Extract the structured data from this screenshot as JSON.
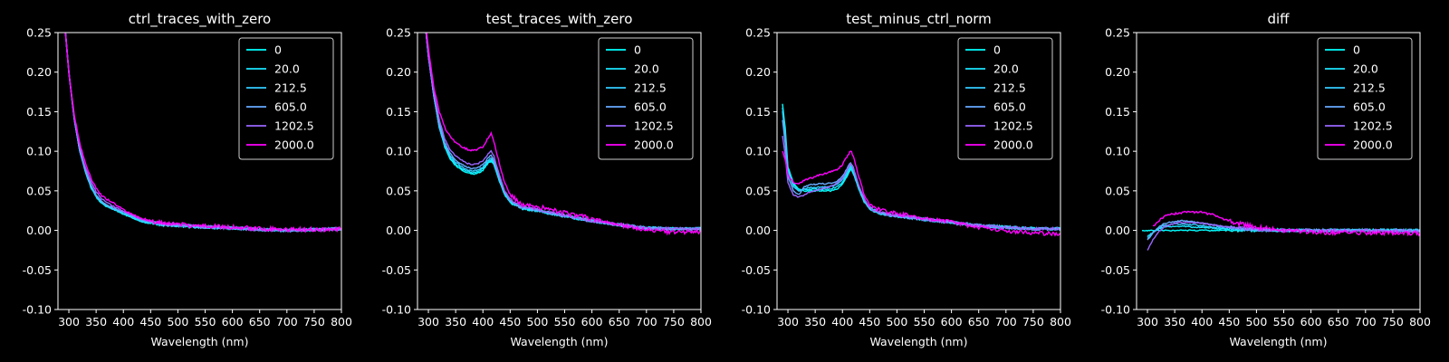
{
  "chart_data": [
    {
      "type": "line",
      "title": "ctrl_traces_with_zero",
      "xlabel": "Wavelength (nm)",
      "ylabel": "",
      "xlim": [
        280,
        800
      ],
      "ylim": [
        -0.1,
        0.25
      ],
      "xticks": [
        300,
        350,
        400,
        450,
        500,
        550,
        600,
        650,
        700,
        750,
        800
      ],
      "yticks": [
        -0.1,
        -0.05,
        0.0,
        0.05,
        0.1,
        0.15,
        0.2,
        0.25
      ],
      "x": [
        290,
        300,
        310,
        320,
        330,
        340,
        350,
        360,
        370,
        380,
        390,
        400,
        410,
        420,
        430,
        440,
        450,
        470,
        500,
        550,
        600,
        650,
        700,
        750,
        800
      ],
      "legend_position": "top-right",
      "series": [
        {
          "name": "0",
          "color": "#00ffff",
          "values": [
            0.28,
            0.2,
            0.14,
            0.1,
            0.075,
            0.055,
            0.042,
            0.034,
            0.03,
            0.027,
            0.024,
            0.02,
            0.018,
            0.015,
            0.012,
            0.01,
            0.009,
            0.007,
            0.006,
            0.004,
            0.003,
            0.001,
            0.0,
            0.001,
            0.002
          ]
        },
        {
          "name": "20.0",
          "color": "#19e5ff",
          "values": [
            0.28,
            0.2,
            0.14,
            0.1,
            0.075,
            0.056,
            0.043,
            0.035,
            0.03,
            0.027,
            0.024,
            0.021,
            0.018,
            0.015,
            0.012,
            0.01,
            0.009,
            0.007,
            0.006,
            0.004,
            0.003,
            0.001,
            0.0,
            0.001,
            0.002
          ]
        },
        {
          "name": "212.5",
          "color": "#33ccff",
          "values": [
            0.28,
            0.2,
            0.14,
            0.1,
            0.076,
            0.057,
            0.044,
            0.036,
            0.031,
            0.028,
            0.025,
            0.022,
            0.019,
            0.016,
            0.013,
            0.011,
            0.01,
            0.008,
            0.006,
            0.004,
            0.003,
            0.001,
            0.0,
            0.001,
            0.002
          ]
        },
        {
          "name": "605.0",
          "color": "#66aaff",
          "values": [
            0.28,
            0.2,
            0.14,
            0.1,
            0.077,
            0.058,
            0.045,
            0.037,
            0.032,
            0.029,
            0.026,
            0.023,
            0.02,
            0.017,
            0.014,
            0.012,
            0.011,
            0.008,
            0.006,
            0.004,
            0.003,
            0.001,
            0.0,
            0.001,
            0.002
          ]
        },
        {
          "name": "1202.5",
          "color": "#9966ff",
          "values": [
            0.28,
            0.2,
            0.14,
            0.105,
            0.08,
            0.062,
            0.049,
            0.04,
            0.035,
            0.031,
            0.028,
            0.024,
            0.021,
            0.018,
            0.015,
            0.013,
            0.011,
            0.009,
            0.007,
            0.005,
            0.003,
            0.001,
            0.0,
            0.001,
            0.002
          ]
        },
        {
          "name": "2000.0",
          "color": "#ff00ff",
          "values": [
            0.28,
            0.2,
            0.145,
            0.11,
            0.085,
            0.067,
            0.053,
            0.044,
            0.039,
            0.035,
            0.031,
            0.026,
            0.022,
            0.019,
            0.016,
            0.014,
            0.012,
            0.01,
            0.008,
            0.005,
            0.004,
            0.002,
            0.001,
            0.001,
            0.002
          ]
        }
      ]
    },
    {
      "type": "line",
      "title": "test_traces_with_zero",
      "xlabel": "Wavelength (nm)",
      "ylabel": "",
      "xlim": [
        280,
        800
      ],
      "ylim": [
        -0.1,
        0.25
      ],
      "xticks": [
        300,
        350,
        400,
        450,
        500,
        550,
        600,
        650,
        700,
        750,
        800
      ],
      "yticks": [
        -0.1,
        -0.05,
        0.0,
        0.05,
        0.1,
        0.15,
        0.2,
        0.25
      ],
      "x": [
        290,
        300,
        310,
        320,
        330,
        340,
        350,
        360,
        370,
        380,
        390,
        400,
        410,
        415,
        420,
        430,
        440,
        450,
        470,
        500,
        550,
        600,
        650,
        700,
        750,
        800
      ],
      "legend_position": "top-right",
      "series": [
        {
          "name": "0",
          "color": "#00ffff",
          "values": [
            0.29,
            0.22,
            0.17,
            0.13,
            0.105,
            0.09,
            0.082,
            0.077,
            0.073,
            0.071,
            0.072,
            0.076,
            0.085,
            0.088,
            0.083,
            0.062,
            0.045,
            0.035,
            0.028,
            0.025,
            0.018,
            0.012,
            0.007,
            0.003,
            0.002,
            0.002
          ]
        },
        {
          "name": "20.0",
          "color": "#19e5ff",
          "values": [
            0.29,
            0.22,
            0.17,
            0.13,
            0.107,
            0.092,
            0.084,
            0.079,
            0.075,
            0.073,
            0.074,
            0.078,
            0.087,
            0.09,
            0.085,
            0.064,
            0.046,
            0.036,
            0.028,
            0.025,
            0.018,
            0.012,
            0.007,
            0.003,
            0.002,
            0.002
          ]
        },
        {
          "name": "212.5",
          "color": "#33ccff",
          "values": [
            0.29,
            0.22,
            0.17,
            0.13,
            0.108,
            0.094,
            0.086,
            0.081,
            0.077,
            0.075,
            0.076,
            0.08,
            0.089,
            0.092,
            0.086,
            0.065,
            0.047,
            0.037,
            0.029,
            0.025,
            0.018,
            0.012,
            0.007,
            0.003,
            0.002,
            0.002
          ]
        },
        {
          "name": "605.0",
          "color": "#66aaff",
          "values": [
            0.29,
            0.22,
            0.17,
            0.135,
            0.111,
            0.097,
            0.089,
            0.084,
            0.08,
            0.078,
            0.079,
            0.083,
            0.092,
            0.095,
            0.089,
            0.067,
            0.048,
            0.038,
            0.029,
            0.026,
            0.019,
            0.012,
            0.007,
            0.003,
            0.002,
            0.002
          ]
        },
        {
          "name": "1202.5",
          "color": "#9966ff",
          "values": [
            0.29,
            0.22,
            0.175,
            0.14,
            0.116,
            0.102,
            0.094,
            0.089,
            0.085,
            0.083,
            0.084,
            0.088,
            0.097,
            0.1,
            0.094,
            0.07,
            0.05,
            0.04,
            0.03,
            0.026,
            0.019,
            0.012,
            0.007,
            0.003,
            0.002,
            0.002
          ]
        },
        {
          "name": "2000.0",
          "color": "#ff00ff",
          "values": [
            0.29,
            0.23,
            0.18,
            0.15,
            0.13,
            0.118,
            0.111,
            0.106,
            0.103,
            0.101,
            0.102,
            0.106,
            0.117,
            0.122,
            0.113,
            0.085,
            0.06,
            0.045,
            0.033,
            0.03,
            0.022,
            0.015,
            0.007,
            0.0,
            -0.002,
            -0.002
          ]
        }
      ]
    },
    {
      "type": "line",
      "title": "test_minus_ctrl_norm",
      "xlabel": "Wavelength (nm)",
      "ylabel": "",
      "xlim": [
        280,
        800
      ],
      "ylim": [
        -0.1,
        0.25
      ],
      "xticks": [
        300,
        350,
        400,
        450,
        500,
        550,
        600,
        650,
        700,
        750,
        800
      ],
      "yticks": [
        -0.1,
        -0.05,
        0.0,
        0.05,
        0.1,
        0.15,
        0.2,
        0.25
      ],
      "x": [
        290,
        295,
        300,
        310,
        320,
        330,
        340,
        350,
        360,
        370,
        380,
        390,
        400,
        410,
        415,
        420,
        430,
        440,
        450,
        470,
        500,
        550,
        600,
        650,
        700,
        750,
        800
      ],
      "legend_position": "top-right",
      "series": [
        {
          "name": "0",
          "color": "#00ffff",
          "values": [
            0.16,
            0.13,
            0.08,
            0.06,
            0.052,
            0.05,
            0.05,
            0.05,
            0.05,
            0.05,
            0.05,
            0.052,
            0.058,
            0.07,
            0.078,
            0.072,
            0.052,
            0.036,
            0.027,
            0.021,
            0.018,
            0.014,
            0.01,
            0.006,
            0.004,
            0.002,
            0.002
          ]
        },
        {
          "name": "20.0",
          "color": "#19e5ff",
          "values": [
            0.155,
            0.125,
            0.078,
            0.058,
            0.05,
            0.052,
            0.052,
            0.052,
            0.052,
            0.052,
            0.053,
            0.055,
            0.061,
            0.073,
            0.08,
            0.074,
            0.053,
            0.037,
            0.027,
            0.021,
            0.018,
            0.014,
            0.01,
            0.006,
            0.004,
            0.002,
            0.002
          ]
        },
        {
          "name": "212.5",
          "color": "#33ccff",
          "values": [
            0.15,
            0.12,
            0.075,
            0.055,
            0.049,
            0.053,
            0.054,
            0.054,
            0.055,
            0.055,
            0.056,
            0.058,
            0.064,
            0.076,
            0.083,
            0.076,
            0.054,
            0.038,
            0.028,
            0.022,
            0.018,
            0.014,
            0.01,
            0.006,
            0.004,
            0.002,
            0.002
          ]
        },
        {
          "name": "605.0",
          "color": "#66aaff",
          "values": [
            0.14,
            0.11,
            0.068,
            0.05,
            0.045,
            0.055,
            0.058,
            0.058,
            0.059,
            0.059,
            0.06,
            0.062,
            0.068,
            0.08,
            0.086,
            0.079,
            0.056,
            0.039,
            0.028,
            0.022,
            0.018,
            0.014,
            0.01,
            0.006,
            0.004,
            0.002,
            0.002
          ]
        },
        {
          "name": "1202.5",
          "color": "#9966ff",
          "values": [
            0.12,
            0.095,
            0.06,
            0.045,
            0.042,
            0.045,
            0.048,
            0.05,
            0.052,
            0.054,
            0.056,
            0.06,
            0.066,
            0.078,
            0.085,
            0.079,
            0.057,
            0.04,
            0.029,
            0.022,
            0.019,
            0.014,
            0.01,
            0.006,
            0.004,
            0.002,
            0.002
          ]
        },
        {
          "name": "2000.0",
          "color": "#ff00ff",
          "values": [
            0.1,
            0.09,
            0.07,
            0.06,
            0.06,
            0.063,
            0.066,
            0.068,
            0.07,
            0.072,
            0.074,
            0.077,
            0.083,
            0.095,
            0.101,
            0.094,
            0.068,
            0.045,
            0.032,
            0.025,
            0.021,
            0.016,
            0.01,
            0.004,
            0.0,
            -0.004,
            -0.004
          ]
        }
      ]
    },
    {
      "type": "line",
      "title": "diff",
      "xlabel": "Wavelength (nm)",
      "ylabel": "",
      "xlim": [
        280,
        800
      ],
      "ylim": [
        -0.1,
        0.25
      ],
      "xticks": [
        300,
        350,
        400,
        450,
        500,
        550,
        600,
        650,
        700,
        750,
        800
      ],
      "yticks": [
        -0.1,
        -0.05,
        0.0,
        0.05,
        0.1,
        0.15,
        0.2,
        0.25
      ],
      "x": [
        290,
        300,
        310,
        320,
        330,
        340,
        350,
        360,
        370,
        380,
        390,
        400,
        410,
        420,
        430,
        440,
        450,
        470,
        500,
        550,
        600,
        650,
        700,
        750,
        800
      ],
      "legend_position": "top-right",
      "series": [
        {
          "name": "0",
          "color": "#00ffff",
          "values": [
            0.0,
            0.0,
            0.0,
            0.0,
            0.0,
            0.0,
            0.0,
            0.0,
            0.0,
            0.0,
            0.0,
            0.0,
            0.0,
            0.0,
            0.0,
            0.0,
            0.0,
            0.0,
            0.0,
            0.0,
            0.0,
            0.0,
            0.0,
            0.0,
            0.0
          ]
        },
        {
          "name": "20.0",
          "color": "#19e5ff",
          "values": [
            null,
            -0.008,
            -0.002,
            0.002,
            0.004,
            0.005,
            0.005,
            0.005,
            0.005,
            0.004,
            0.004,
            0.004,
            0.003,
            0.003,
            0.002,
            0.002,
            0.002,
            0.001,
            0.001,
            0.0,
            0.0,
            0.0,
            0.0,
            0.0,
            0.0
          ]
        },
        {
          "name": "212.5",
          "color": "#33ccff",
          "values": [
            null,
            -0.01,
            -0.003,
            0.003,
            0.006,
            0.007,
            0.008,
            0.008,
            0.008,
            0.007,
            0.007,
            0.006,
            0.005,
            0.004,
            0.004,
            0.003,
            0.003,
            0.002,
            0.001,
            0.0,
            0.0,
            0.0,
            0.0,
            0.0,
            0.0
          ]
        },
        {
          "name": "605.0",
          "color": "#66aaff",
          "values": [
            null,
            -0.012,
            -0.004,
            0.004,
            0.008,
            0.01,
            0.011,
            0.012,
            0.012,
            0.011,
            0.01,
            0.009,
            0.008,
            0.007,
            0.006,
            0.005,
            0.004,
            0.003,
            0.001,
            0.0,
            0.0,
            0.0,
            0.0,
            0.0,
            0.0
          ]
        },
        {
          "name": "1202.5",
          "color": "#9966ff",
          "values": [
            null,
            -0.025,
            -0.012,
            -0.002,
            0.004,
            0.007,
            0.009,
            0.01,
            0.01,
            0.01,
            0.01,
            0.009,
            0.008,
            0.007,
            0.006,
            0.005,
            0.004,
            0.003,
            0.001,
            0.0,
            0.0,
            0.0,
            0.0,
            -0.001,
            -0.001
          ]
        },
        {
          "name": "2000.0",
          "color": "#ff00ff",
          "values": [
            null,
            null,
            0.005,
            0.012,
            0.017,
            0.02,
            0.021,
            0.022,
            0.023,
            0.023,
            0.023,
            0.023,
            0.021,
            0.02,
            0.017,
            0.014,
            0.012,
            0.008,
            0.004,
            0.0,
            -0.002,
            -0.003,
            -0.003,
            -0.003,
            -0.004
          ]
        }
      ]
    }
  ]
}
